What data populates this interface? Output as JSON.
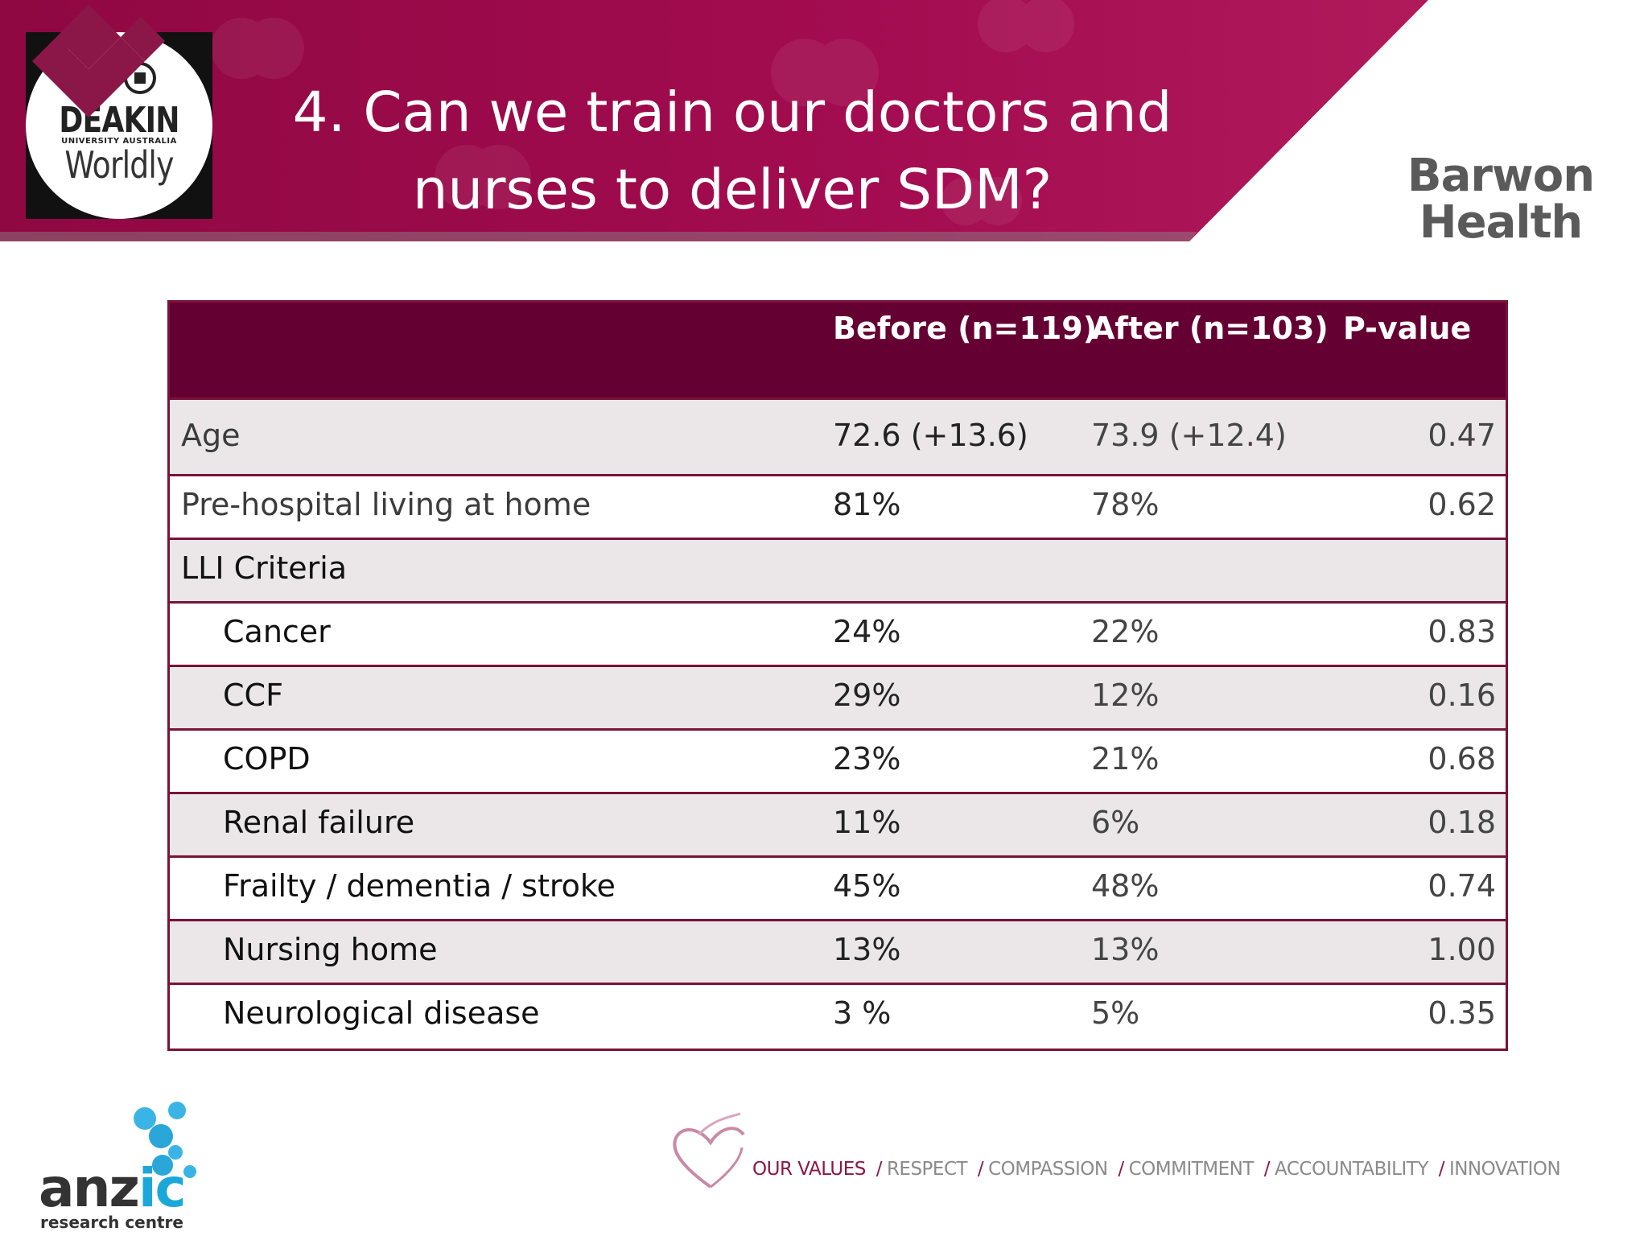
{
  "header": {
    "title_line1": "4. Can we train our doctors and",
    "title_line2": "nurses to deliver SDM?",
    "deakin_logo": {
      "name": "DEAKIN",
      "subtitle": "UNIVERSITY AUSTRALIA",
      "tagline": "Worldly"
    },
    "barwon_logo": {
      "line1": "Barwon",
      "line2": "Health"
    }
  },
  "table": {
    "headers": {
      "label": "",
      "before": "Before (n=119)",
      "after": "After  (n=103)",
      "p": "P-value"
    },
    "rows": [
      {
        "label": "Age",
        "before": "72.6 (+13.6)",
        "after": "73.9 (+12.4)",
        "p": "0.47"
      },
      {
        "label": "Pre-hospital living at home",
        "before": "81%",
        "after": "78%",
        "p": "0.62"
      },
      {
        "label": "LLI Criteria",
        "before": "",
        "after": "",
        "p": ""
      },
      {
        "label": "Cancer",
        "before": "24%",
        "after": "22%",
        "p": "0.83"
      },
      {
        "label": "CCF",
        "before": "29%",
        "after": "12%",
        "p": "0.16"
      },
      {
        "label": "COPD",
        "before": "23%",
        "after": "21%",
        "p": "0.68"
      },
      {
        "label": "Renal failure",
        "before": "11%",
        "after": "6%",
        "p": "0.18"
      },
      {
        "label": "Frailty / dementia / stroke",
        "before": "45%",
        "after": "48%",
        "p": "0.74"
      },
      {
        "label": "Nursing home",
        "before": "13%",
        "after": "13%",
        "p": "1.00"
      },
      {
        "label": "Neurological disease",
        "before": "3 %",
        "after": "5%",
        "p": "0.35"
      }
    ]
  },
  "footer": {
    "anzic": {
      "word_main": "anz",
      "word_accent": "ic",
      "subtitle": "research centre"
    },
    "values": {
      "lead": "OUR VALUES",
      "separator": "/",
      "items": [
        "RESPECT",
        "COMPASSION",
        "COMMITMENT",
        "ACCOUNTABILITY",
        "INNOVATION"
      ]
    }
  },
  "colors": {
    "banner": "#9b0a4c",
    "table_header": "#650032",
    "border": "#7a1238",
    "shaded_row": "#ebe7e8"
  }
}
